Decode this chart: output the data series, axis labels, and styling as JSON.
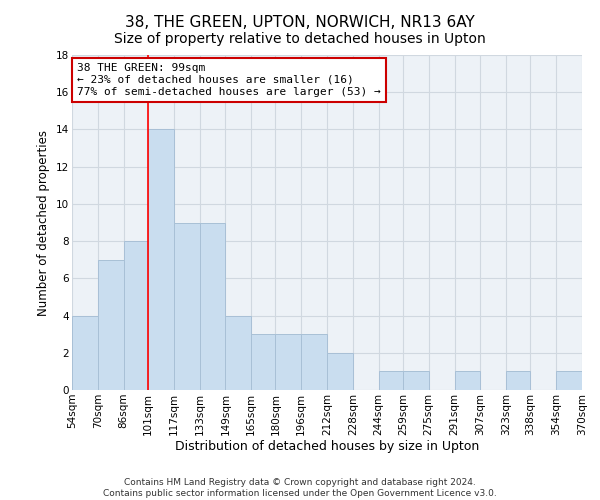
{
  "title": "38, THE GREEN, UPTON, NORWICH, NR13 6AY",
  "subtitle": "Size of property relative to detached houses in Upton",
  "xlabel": "Distribution of detached houses by size in Upton",
  "ylabel": "Number of detached properties",
  "bin_edges": [
    54,
    70,
    86,
    101,
    117,
    133,
    149,
    165,
    180,
    196,
    212,
    228,
    244,
    259,
    275,
    291,
    307,
    323,
    338,
    354,
    370
  ],
  "bin_labels": [
    "54sqm",
    "70sqm",
    "86sqm",
    "101sqm",
    "117sqm",
    "133sqm",
    "149sqm",
    "165sqm",
    "180sqm",
    "196sqm",
    "212sqm",
    "228sqm",
    "244sqm",
    "259sqm",
    "275sqm",
    "291sqm",
    "307sqm",
    "323sqm",
    "338sqm",
    "354sqm",
    "370sqm"
  ],
  "counts": [
    4,
    7,
    8,
    14,
    9,
    9,
    4,
    3,
    3,
    3,
    2,
    0,
    1,
    1,
    0,
    1,
    0,
    1,
    0,
    1
  ],
  "bar_color": "#c9ddef",
  "bar_edge_color": "#a8c0d6",
  "grid_color": "#d0d8e0",
  "background_color": "#edf2f7",
  "property_line_x": 101,
  "annotation_line1": "38 THE GREEN: 99sqm",
  "annotation_line2": "← 23% of detached houses are smaller (16)",
  "annotation_line3": "77% of semi-detached houses are larger (53) →",
  "annotation_box_color": "#cc0000",
  "ylim": [
    0,
    18
  ],
  "yticks": [
    0,
    2,
    4,
    6,
    8,
    10,
    12,
    14,
    16,
    18
  ],
  "footer1": "Contains HM Land Registry data © Crown copyright and database right 2024.",
  "footer2": "Contains public sector information licensed under the Open Government Licence v3.0.",
  "title_fontsize": 11,
  "xlabel_fontsize": 9,
  "ylabel_fontsize": 8.5,
  "tick_fontsize": 7.5,
  "annotation_fontsize": 8,
  "footer_fontsize": 6.5
}
